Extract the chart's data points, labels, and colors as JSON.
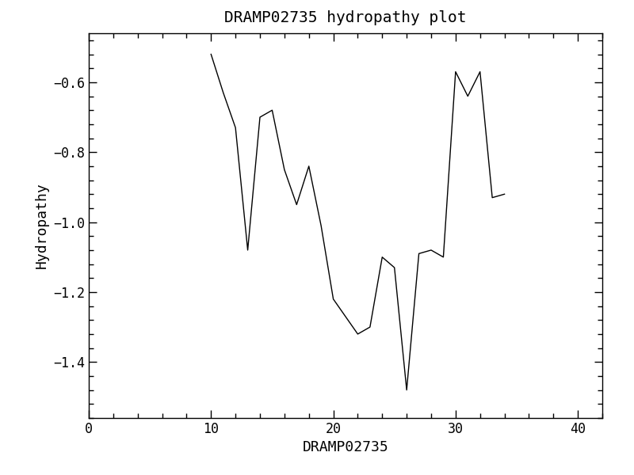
{
  "title": "DRAMP02735 hydropathy plot",
  "xlabel": "DRAMP02735",
  "ylabel": "Hydropathy",
  "xlim": [
    0,
    42
  ],
  "ylim": [
    -1.56,
    -0.46
  ],
  "xticks": [
    0,
    10,
    20,
    30,
    40
  ],
  "yticks": [
    -1.4,
    -1.2,
    -1.0,
    -0.8,
    -0.6
  ],
  "line_color": "#000000",
  "line_width": 1.0,
  "background_color": "#ffffff",
  "x": [
    10,
    11,
    12,
    13,
    14,
    15,
    16,
    17,
    18,
    19,
    20,
    21,
    22,
    23,
    24,
    25,
    26,
    27,
    28,
    29,
    30,
    31,
    32,
    33,
    34
  ],
  "y": [
    -0.52,
    -0.63,
    -0.73,
    -1.08,
    -0.7,
    -0.68,
    -0.85,
    -0.95,
    -0.84,
    -1.01,
    -1.22,
    -1.27,
    -1.32,
    -1.3,
    -1.1,
    -1.13,
    -1.48,
    -1.09,
    -1.08,
    -1.1,
    -0.57,
    -0.64,
    -0.57,
    -0.93,
    -0.92
  ],
  "title_fontsize": 14,
  "label_fontsize": 13,
  "tick_fontsize": 12,
  "font_family": "DejaVu Sans Mono"
}
